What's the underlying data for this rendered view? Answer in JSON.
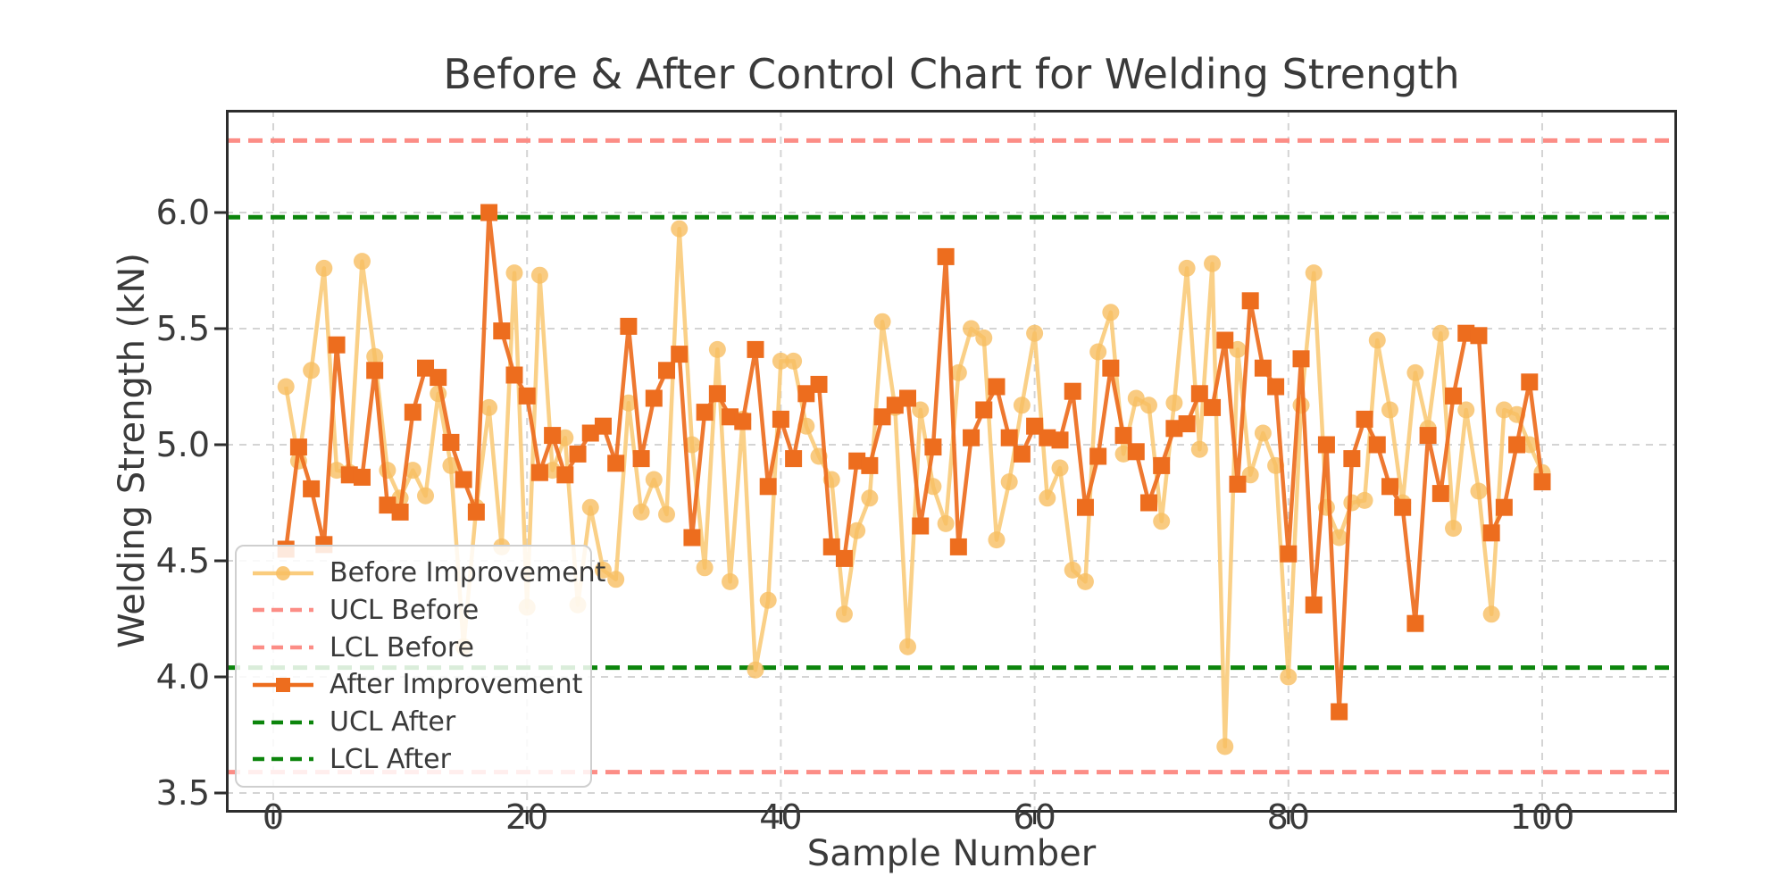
{
  "title": "Before & After Control Chart for Welding Strength",
  "chart_data": {
    "type": "line",
    "title": "Before & After Control Chart for Welding Strength",
    "xlabel": "Sample Number",
    "ylabel": "Welding Strength (kN)",
    "x_ticks": [
      0,
      20,
      40,
      60,
      80,
      100
    ],
    "y_ticks": [
      3.5,
      4.0,
      4.5,
      5.0,
      5.5,
      6.0
    ],
    "xlim": [
      -3.7,
      110.6
    ],
    "ylim": [
      3.42,
      6.44
    ],
    "grid": true,
    "legend_position": "lower left",
    "x_start": 1,
    "x_step": 1,
    "series": [
      {
        "name": "Before Improvement",
        "kind": "line",
        "marker": "circle",
        "color": "#FACC7D",
        "marker_color": "#F8BE62",
        "values": [
          5.25,
          4.93,
          5.32,
          5.76,
          4.89,
          4.88,
          5.79,
          5.38,
          4.89,
          4.77,
          4.89,
          4.78,
          5.22,
          4.91,
          4.13,
          4.73,
          5.16,
          4.56,
          5.74,
          4.3,
          5.73,
          4.89,
          5.03,
          4.31,
          4.73,
          4.46,
          4.42,
          5.18,
          4.71,
          4.85,
          4.7,
          5.93,
          5.0,
          4.47,
          5.41,
          4.41,
          5.11,
          4.03,
          4.33,
          5.36,
          5.36,
          5.08,
          4.95,
          4.85,
          4.27,
          4.63,
          4.77,
          5.53,
          5.16,
          4.13,
          5.15,
          4.82,
          4.66,
          5.31,
          5.5,
          5.46,
          4.59,
          4.84,
          5.17,
          5.48,
          4.77,
          4.9,
          4.46,
          4.41,
          5.4,
          5.57,
          4.96,
          5.2,
          5.17,
          4.67,
          5.18,
          5.76,
          4.98,
          5.78,
          3.7,
          5.41,
          4.87,
          5.05,
          4.91,
          4.0,
          5.17,
          5.74,
          4.73,
          4.6,
          4.75,
          4.76,
          5.45,
          5.15,
          4.75,
          5.31,
          5.07,
          5.48,
          4.64,
          5.15,
          4.8,
          4.27,
          5.15,
          5.13,
          5.0,
          4.88
        ]
      },
      {
        "name": "UCL Before",
        "kind": "hline",
        "color": "#FC8D86",
        "value": 6.31
      },
      {
        "name": "LCL Before",
        "kind": "hline",
        "color": "#FC8D86",
        "value": 3.59
      },
      {
        "name": "After Improvement",
        "kind": "line",
        "marker": "square",
        "color": "#ED6D1E",
        "marker_color": "#ED6D1E",
        "values": [
          4.55,
          4.99,
          4.81,
          4.57,
          5.43,
          4.87,
          4.86,
          5.32,
          4.74,
          4.71,
          5.14,
          5.33,
          5.29,
          5.01,
          4.85,
          4.71,
          6.0,
          5.49,
          5.3,
          5.21,
          4.88,
          5.04,
          4.87,
          4.96,
          5.05,
          5.08,
          4.92,
          5.51,
          4.94,
          5.2,
          5.32,
          5.39,
          4.6,
          5.14,
          5.22,
          5.12,
          5.1,
          5.41,
          4.82,
          5.11,
          4.94,
          5.22,
          5.26,
          4.56,
          4.51,
          4.93,
          4.91,
          5.12,
          5.17,
          5.2,
          4.65,
          4.99,
          5.81,
          4.56,
          5.03,
          5.15,
          5.25,
          5.03,
          4.96,
          5.08,
          5.03,
          5.02,
          5.23,
          4.73,
          4.95,
          5.33,
          5.04,
          4.97,
          4.75,
          4.91,
          5.07,
          5.09,
          5.22,
          5.16,
          5.45,
          4.83,
          5.62,
          5.33,
          5.25,
          4.53,
          5.37,
          4.31,
          5.0,
          3.85,
          4.94,
          5.11,
          5.0,
          4.82,
          4.73,
          4.23,
          5.04,
          4.79,
          5.21,
          5.48,
          5.47,
          4.62,
          4.73,
          5.0,
          5.27,
          4.84
        ]
      },
      {
        "name": "UCL After",
        "kind": "hline",
        "color": "#0C850C",
        "value": 5.98
      },
      {
        "name": "LCL After",
        "kind": "hline",
        "color": "#0C850C",
        "value": 4.04
      }
    ]
  },
  "style": {
    "grid_color": "#d4d4d4",
    "spine_color": "#2d2d2d",
    "text_color": "#3a3a3a",
    "background": "#ffffff"
  }
}
